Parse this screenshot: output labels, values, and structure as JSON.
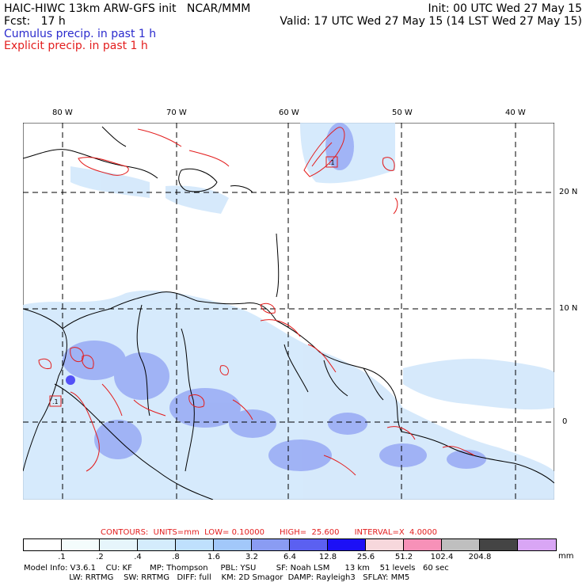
{
  "header": {
    "title_left": "HAIC-HIWC 13km ARW-GFS init   NCAR/MMM",
    "init": "Init: 00 UTC Wed 27 May 15",
    "fcst": "Fcst:   17 h",
    "valid": "Valid: 17 UTC Wed 27 May 15 (14 LST Wed 27 May 15)",
    "cumulus": "Cumulus precip. in past 1 h",
    "explicit": "Explicit precip. in past 1 h"
  },
  "map": {
    "lon_labels": [
      "80 W",
      "70 W",
      "60 W",
      "50 W",
      "40 W"
    ],
    "lat_labels": [
      "20 N",
      "10 N",
      "0"
    ],
    "box_labels": [
      ".1",
      ".1"
    ]
  },
  "contours": {
    "label": "CONTOURS:  UNITS=mm  LOW= 0.10000      HIGH=  25.600      INTERVAL=X  4.0000"
  },
  "colorbar": {
    "colors": [
      "#ffffff",
      "#f4fcfc",
      "#e6f5fb",
      "#d4ecfc",
      "#bfe0fd",
      "#a2c8fa",
      "#8a9cf3",
      "#5b60f1",
      "#1c10f6",
      "#f7d8dc",
      "#f791b8",
      "#bfbfbf",
      "#444444",
      "#d9a6f5"
    ],
    "labels": [
      ".1",
      ".2",
      ".4",
      ".8",
      "1.6",
      "3.2",
      "6.4",
      "12.8",
      "25.6",
      "51.2",
      "102.4",
      "204.8"
    ],
    "units": "mm"
  },
  "model_info": {
    "line1": "Model Info: V3.6.1    CU: KF       MP: Thompson     PBL: YSU        SF: Noah LSM      13 km    51 levels   60 sec",
    "line2": "                  LW: RRTMG    SW: RRTMG   DIFF: full    KM: 2D Smagor  DAMP: Rayleigh3   SFLAY: MM5"
  },
  "colors": {
    "explicit_contour": "#e31d1d",
    "cumulus_label": "#2a2acd",
    "coast": "#000000"
  }
}
